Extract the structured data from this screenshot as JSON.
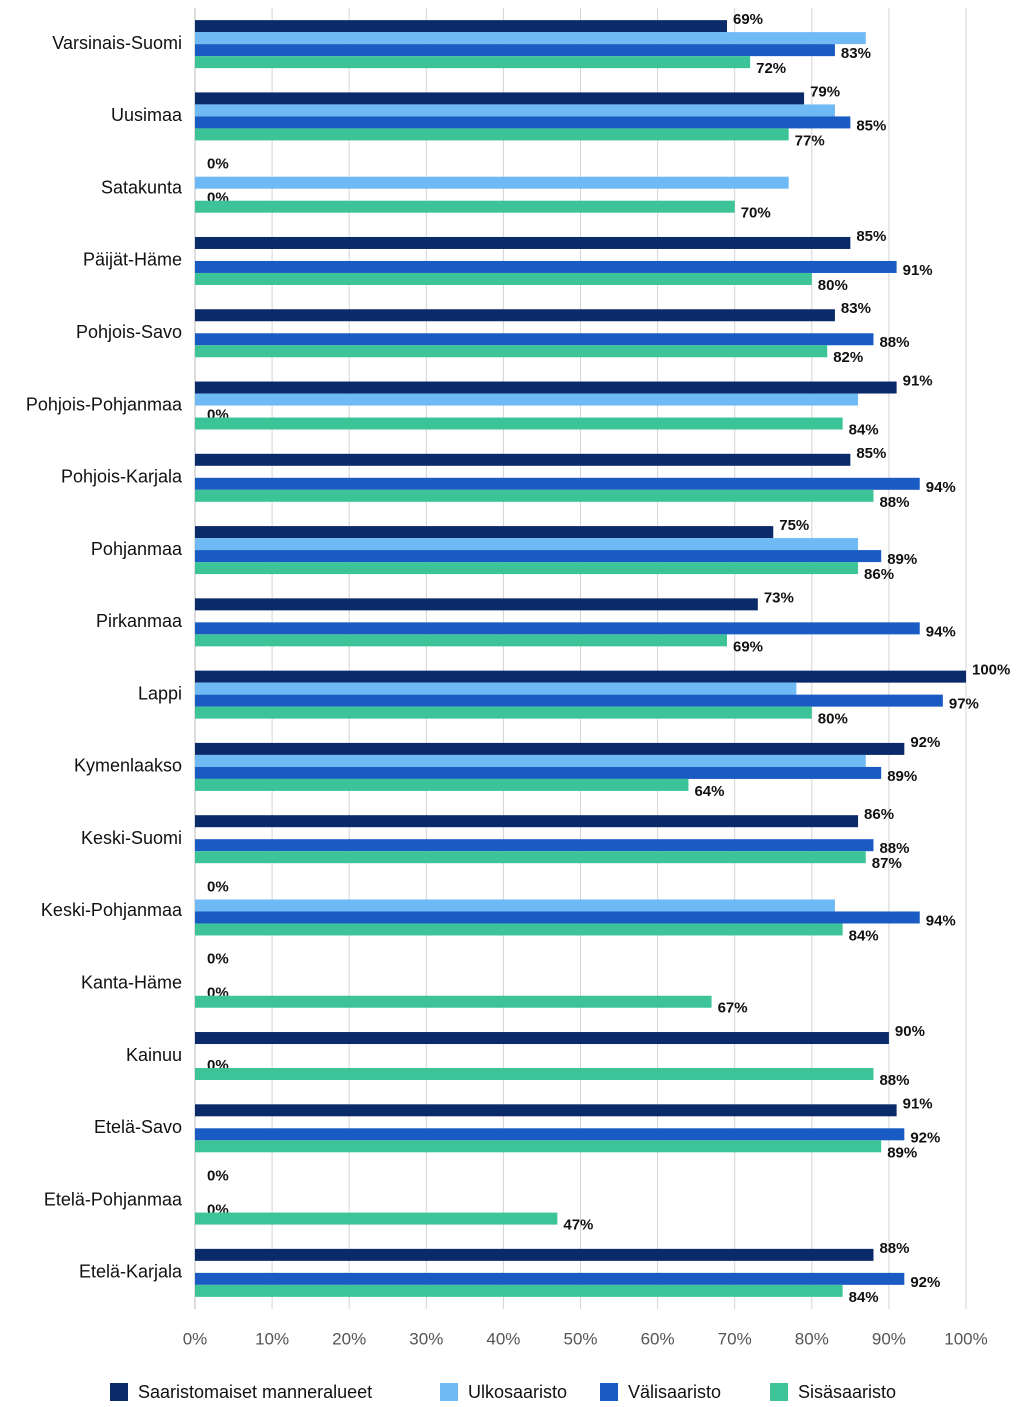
{
  "chart_data": {
    "type": "bar",
    "orientation": "horizontal",
    "categories": [
      "Varsinais-Suomi",
      "Uusimaa",
      "Satakunta",
      "Päijät-Häme",
      "Pohjois-Savo",
      "Pohjois-Pohjanmaa",
      "Pohjois-Karjala",
      "Pohjanmaa",
      "Pirkanmaa",
      "Lappi",
      "Kymenlaakso",
      "Keski-Suomi",
      "Keski-Pohjanmaa",
      "Kanta-Häme",
      "Kainuu",
      "Etelä-Savo",
      "Etelä-Pohjanmaa",
      "Etelä-Karjala"
    ],
    "series": [
      {
        "name": "Saaristomaiset manneralueet",
        "color": "#0b2a6a",
        "values": [
          69,
          79,
          0,
          85,
          83,
          91,
          85,
          75,
          73,
          100,
          92,
          86,
          0,
          0,
          90,
          91,
          0,
          88
        ],
        "value_labels": [
          "69%",
          "79%",
          "0%",
          "85%",
          "83%",
          "91%",
          "85%",
          "75%",
          "73%",
          "100%",
          "92%",
          "86%",
          "0%",
          "0%",
          "90%",
          "91%",
          "0%",
          "88%"
        ]
      },
      {
        "name": "Ulkosaaristo",
        "color": "#6fb9f4",
        "values": [
          87,
          83,
          77,
          null,
          null,
          86,
          null,
          86,
          null,
          78,
          87,
          null,
          83,
          null,
          null,
          null,
          null,
          null
        ]
      },
      {
        "name": "Välisaaristo",
        "color": "#1a5bc3",
        "values": [
          83,
          85,
          0,
          91,
          88,
          0,
          94,
          89,
          94,
          97,
          89,
          88,
          94,
          0,
          0,
          92,
          0,
          92
        ],
        "value_labels": [
          "83%",
          "85%",
          "0%",
          "91%",
          "88%",
          "0%",
          "94%",
          "89%",
          "94%",
          "97%",
          "89%",
          "88%",
          "94%",
          "0%",
          "0%",
          "92%",
          "0%",
          "92%"
        ]
      },
      {
        "name": "Sisäsaaristo",
        "color": "#3dc398",
        "values": [
          72,
          77,
          70,
          80,
          82,
          84,
          88,
          86,
          69,
          80,
          64,
          87,
          84,
          67,
          88,
          89,
          47,
          84
        ],
        "value_labels": [
          "72%",
          "77%",
          "70%",
          "80%",
          "82%",
          "84%",
          "88%",
          "86%",
          "69%",
          "80%",
          "64%",
          "87%",
          "84%",
          "67%",
          "88%",
          "89%",
          "47%",
          "84%"
        ]
      }
    ],
    "xlim": [
      0,
      100
    ],
    "xticks": [
      {
        "value": 0,
        "label": "0%"
      },
      {
        "value": 10,
        "label": "10%"
      },
      {
        "value": 20,
        "label": "20%"
      },
      {
        "value": 30,
        "label": "30%"
      },
      {
        "value": 40,
        "label": "40%"
      },
      {
        "value": 50,
        "label": "50%"
      },
      {
        "value": 60,
        "label": "60%"
      },
      {
        "value": 70,
        "label": "70%"
      },
      {
        "value": 80,
        "label": "80%"
      },
      {
        "value": 90,
        "label": "90%"
      },
      {
        "value": 100,
        "label": "100%"
      }
    ],
    "grid": true,
    "legend": "bottom"
  }
}
